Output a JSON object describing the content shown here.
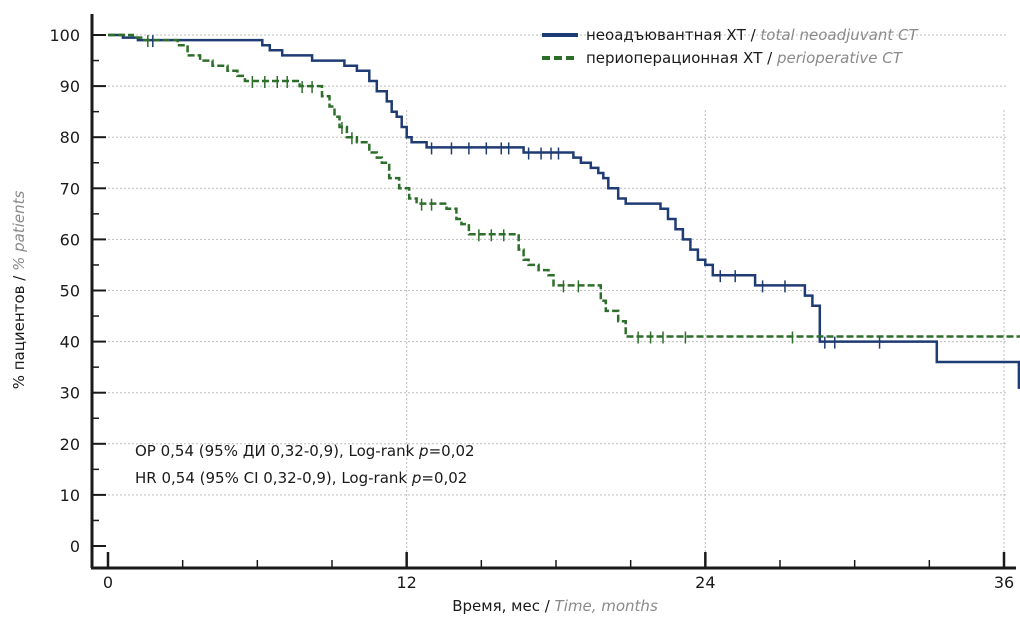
{
  "chart_data": {
    "type": "line",
    "subtype": "kaplan-meier step",
    "title": "",
    "xlabel": {
      "ru": "Время, мес",
      "en": "Time, months"
    },
    "ylabel": {
      "ru": "% пациентов",
      "en": "% patients"
    },
    "xlim": [
      0,
      36
    ],
    "ylim": [
      0,
      100
    ],
    "x_ticks": [
      0,
      12,
      24,
      36
    ],
    "y_ticks": [
      0,
      10,
      20,
      30,
      40,
      50,
      60,
      70,
      80,
      90,
      100
    ],
    "grid": "dotted",
    "legend_position": "top-right",
    "series": [
      {
        "legend_ru": "неоадъювантная ХТ",
        "legend_en": "total neoadjuvant CT",
        "color": "#1f3b73",
        "style": "solid",
        "points": [
          [
            0,
            100
          ],
          [
            0.6,
            99.5
          ],
          [
            1.2,
            99
          ],
          [
            5.8,
            99
          ],
          [
            6.2,
            98
          ],
          [
            6.5,
            97
          ],
          [
            7,
            96
          ],
          [
            8,
            96
          ],
          [
            8.2,
            95
          ],
          [
            9,
            95
          ],
          [
            9.5,
            94
          ],
          [
            10,
            93
          ],
          [
            10.5,
            91
          ],
          [
            10.8,
            89
          ],
          [
            11.2,
            87
          ],
          [
            11.4,
            85
          ],
          [
            11.6,
            84
          ],
          [
            11.8,
            82
          ],
          [
            12,
            80
          ],
          [
            12.2,
            79
          ],
          [
            12.8,
            78
          ],
          [
            16.5,
            78
          ],
          [
            16.7,
            77
          ],
          [
            18.5,
            77
          ],
          [
            18.7,
            76
          ],
          [
            19,
            75
          ],
          [
            19.4,
            74
          ],
          [
            19.7,
            73
          ],
          [
            19.9,
            72
          ],
          [
            20.1,
            70
          ],
          [
            20.5,
            68
          ],
          [
            20.8,
            67
          ],
          [
            22,
            67
          ],
          [
            22.2,
            66
          ],
          [
            22.5,
            64
          ],
          [
            22.8,
            62
          ],
          [
            23.1,
            60
          ],
          [
            23.4,
            58
          ],
          [
            23.7,
            56
          ],
          [
            24,
            55
          ],
          [
            24.3,
            53
          ],
          [
            25.8,
            53
          ],
          [
            26,
            51
          ],
          [
            27.8,
            51
          ],
          [
            28,
            49
          ],
          [
            28.3,
            47
          ],
          [
            28.6,
            40
          ],
          [
            33.1,
            40
          ],
          [
            33.3,
            36
          ],
          [
            36.4,
            36
          ],
          [
            36.6,
            31
          ],
          [
            36.9,
            31
          ],
          [
            36.9,
            29
          ]
        ],
        "censor_x": [
          1.8,
          13,
          13.8,
          14.5,
          15.2,
          15.8,
          16.1,
          16.9,
          17.4,
          17.8,
          18.1,
          24.6,
          25.2,
          26.3,
          27.2,
          28.8,
          29.2,
          31,
          36.9
        ]
      },
      {
        "legend_ru": "периоперационная ХТ",
        "legend_en": "perioperative CT",
        "color": "#2e6e2b",
        "style": "dashed",
        "points": [
          [
            0,
            100
          ],
          [
            1,
            99.5
          ],
          [
            1.4,
            99
          ],
          [
            2.5,
            99
          ],
          [
            2.8,
            98
          ],
          [
            3.2,
            96
          ],
          [
            3.7,
            95
          ],
          [
            4.2,
            94
          ],
          [
            4.8,
            93
          ],
          [
            5.2,
            92
          ],
          [
            5.5,
            91
          ],
          [
            7.5,
            91
          ],
          [
            7.7,
            90
          ],
          [
            8.3,
            90
          ],
          [
            8.6,
            88
          ],
          [
            8.9,
            86
          ],
          [
            9.1,
            84
          ],
          [
            9.3,
            82
          ],
          [
            9.6,
            80
          ],
          [
            10,
            79
          ],
          [
            10.5,
            77
          ],
          [
            10.8,
            76
          ],
          [
            11,
            75
          ],
          [
            11.3,
            72
          ],
          [
            11.7,
            70
          ],
          [
            12.1,
            68
          ],
          [
            12.4,
            67
          ],
          [
            13.3,
            67
          ],
          [
            13.6,
            66
          ],
          [
            14,
            64
          ],
          [
            14.2,
            63
          ],
          [
            14.5,
            61
          ],
          [
            16.3,
            61
          ],
          [
            16.5,
            58
          ],
          [
            16.7,
            56
          ],
          [
            16.9,
            55
          ],
          [
            17.3,
            54
          ],
          [
            17.7,
            53
          ],
          [
            17.9,
            51
          ],
          [
            19.6,
            51
          ],
          [
            19.8,
            48
          ],
          [
            20,
            46
          ],
          [
            20.5,
            44
          ],
          [
            20.8,
            41
          ],
          [
            36.9,
            41
          ]
        ],
        "censor_x": [
          1.6,
          5.8,
          6.3,
          6.8,
          7.2,
          7.8,
          8.2,
          9.4,
          9.8,
          12.6,
          13,
          14.9,
          15.4,
          15.9,
          18.3,
          18.9,
          21.3,
          21.8,
          22.3,
          23.2,
          27.5
        ]
      }
    ],
    "annotation": {
      "ru_prefix": "ОР 0,54 (95% ДИ 0,32-0,9), Log-rank ",
      "en_prefix": "HR 0,54 (95% CI 0,32-0,9), Log-rank ",
      "p_symbol": "p",
      "p_value": "=0,02"
    }
  }
}
